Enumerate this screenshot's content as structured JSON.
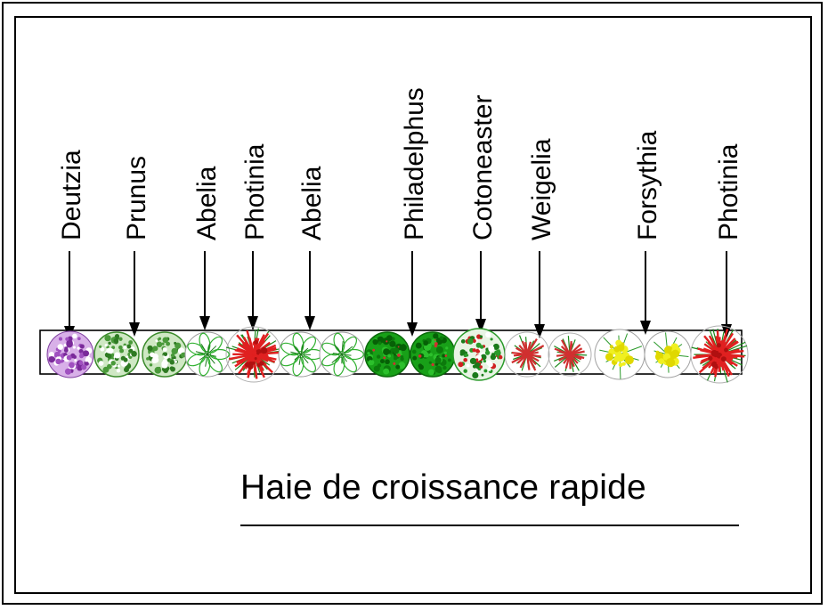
{
  "title": "Haie de croissance rapide",
  "labels": [
    {
      "text": "Deutzia",
      "plant": "deutzia"
    },
    {
      "text": "Prunus",
      "plant": "prunus"
    },
    {
      "text": "Abelia",
      "plant": "abelia"
    },
    {
      "text": "Photinia",
      "plant": "photinia"
    },
    {
      "text": "Abelia",
      "plant": "abelia"
    },
    {
      "text": "Philadelphus",
      "plant": "philadelphus"
    },
    {
      "text": "Cotoneaster",
      "plant": "cotoneaster"
    },
    {
      "text": "Weigelia",
      "plant": "weigelia"
    },
    {
      "text": "Forsythia",
      "plant": "forsythia"
    },
    {
      "text": "Photinia",
      "plant": "photinia"
    }
  ],
  "shrub_sequence": [
    "deutzia",
    "prunus",
    "prunus",
    "abelia",
    "photinia",
    "abelia",
    "abelia",
    "philadelphus",
    "philadelphus",
    "cotoneaster",
    "weigelia",
    "weigelia",
    "forsythia",
    "forsythia",
    "photinia"
  ],
  "colors": {
    "deutzia": "#b06ad0",
    "prunus": "#4a9a3a",
    "abelia": "#30b030",
    "photinia": "#e02020",
    "philadelphus": "#18a018",
    "cotoneaster": "#2a9a2a",
    "weigelia": "#d03030",
    "forsythia": "#f0f020",
    "line": "#000000"
  }
}
